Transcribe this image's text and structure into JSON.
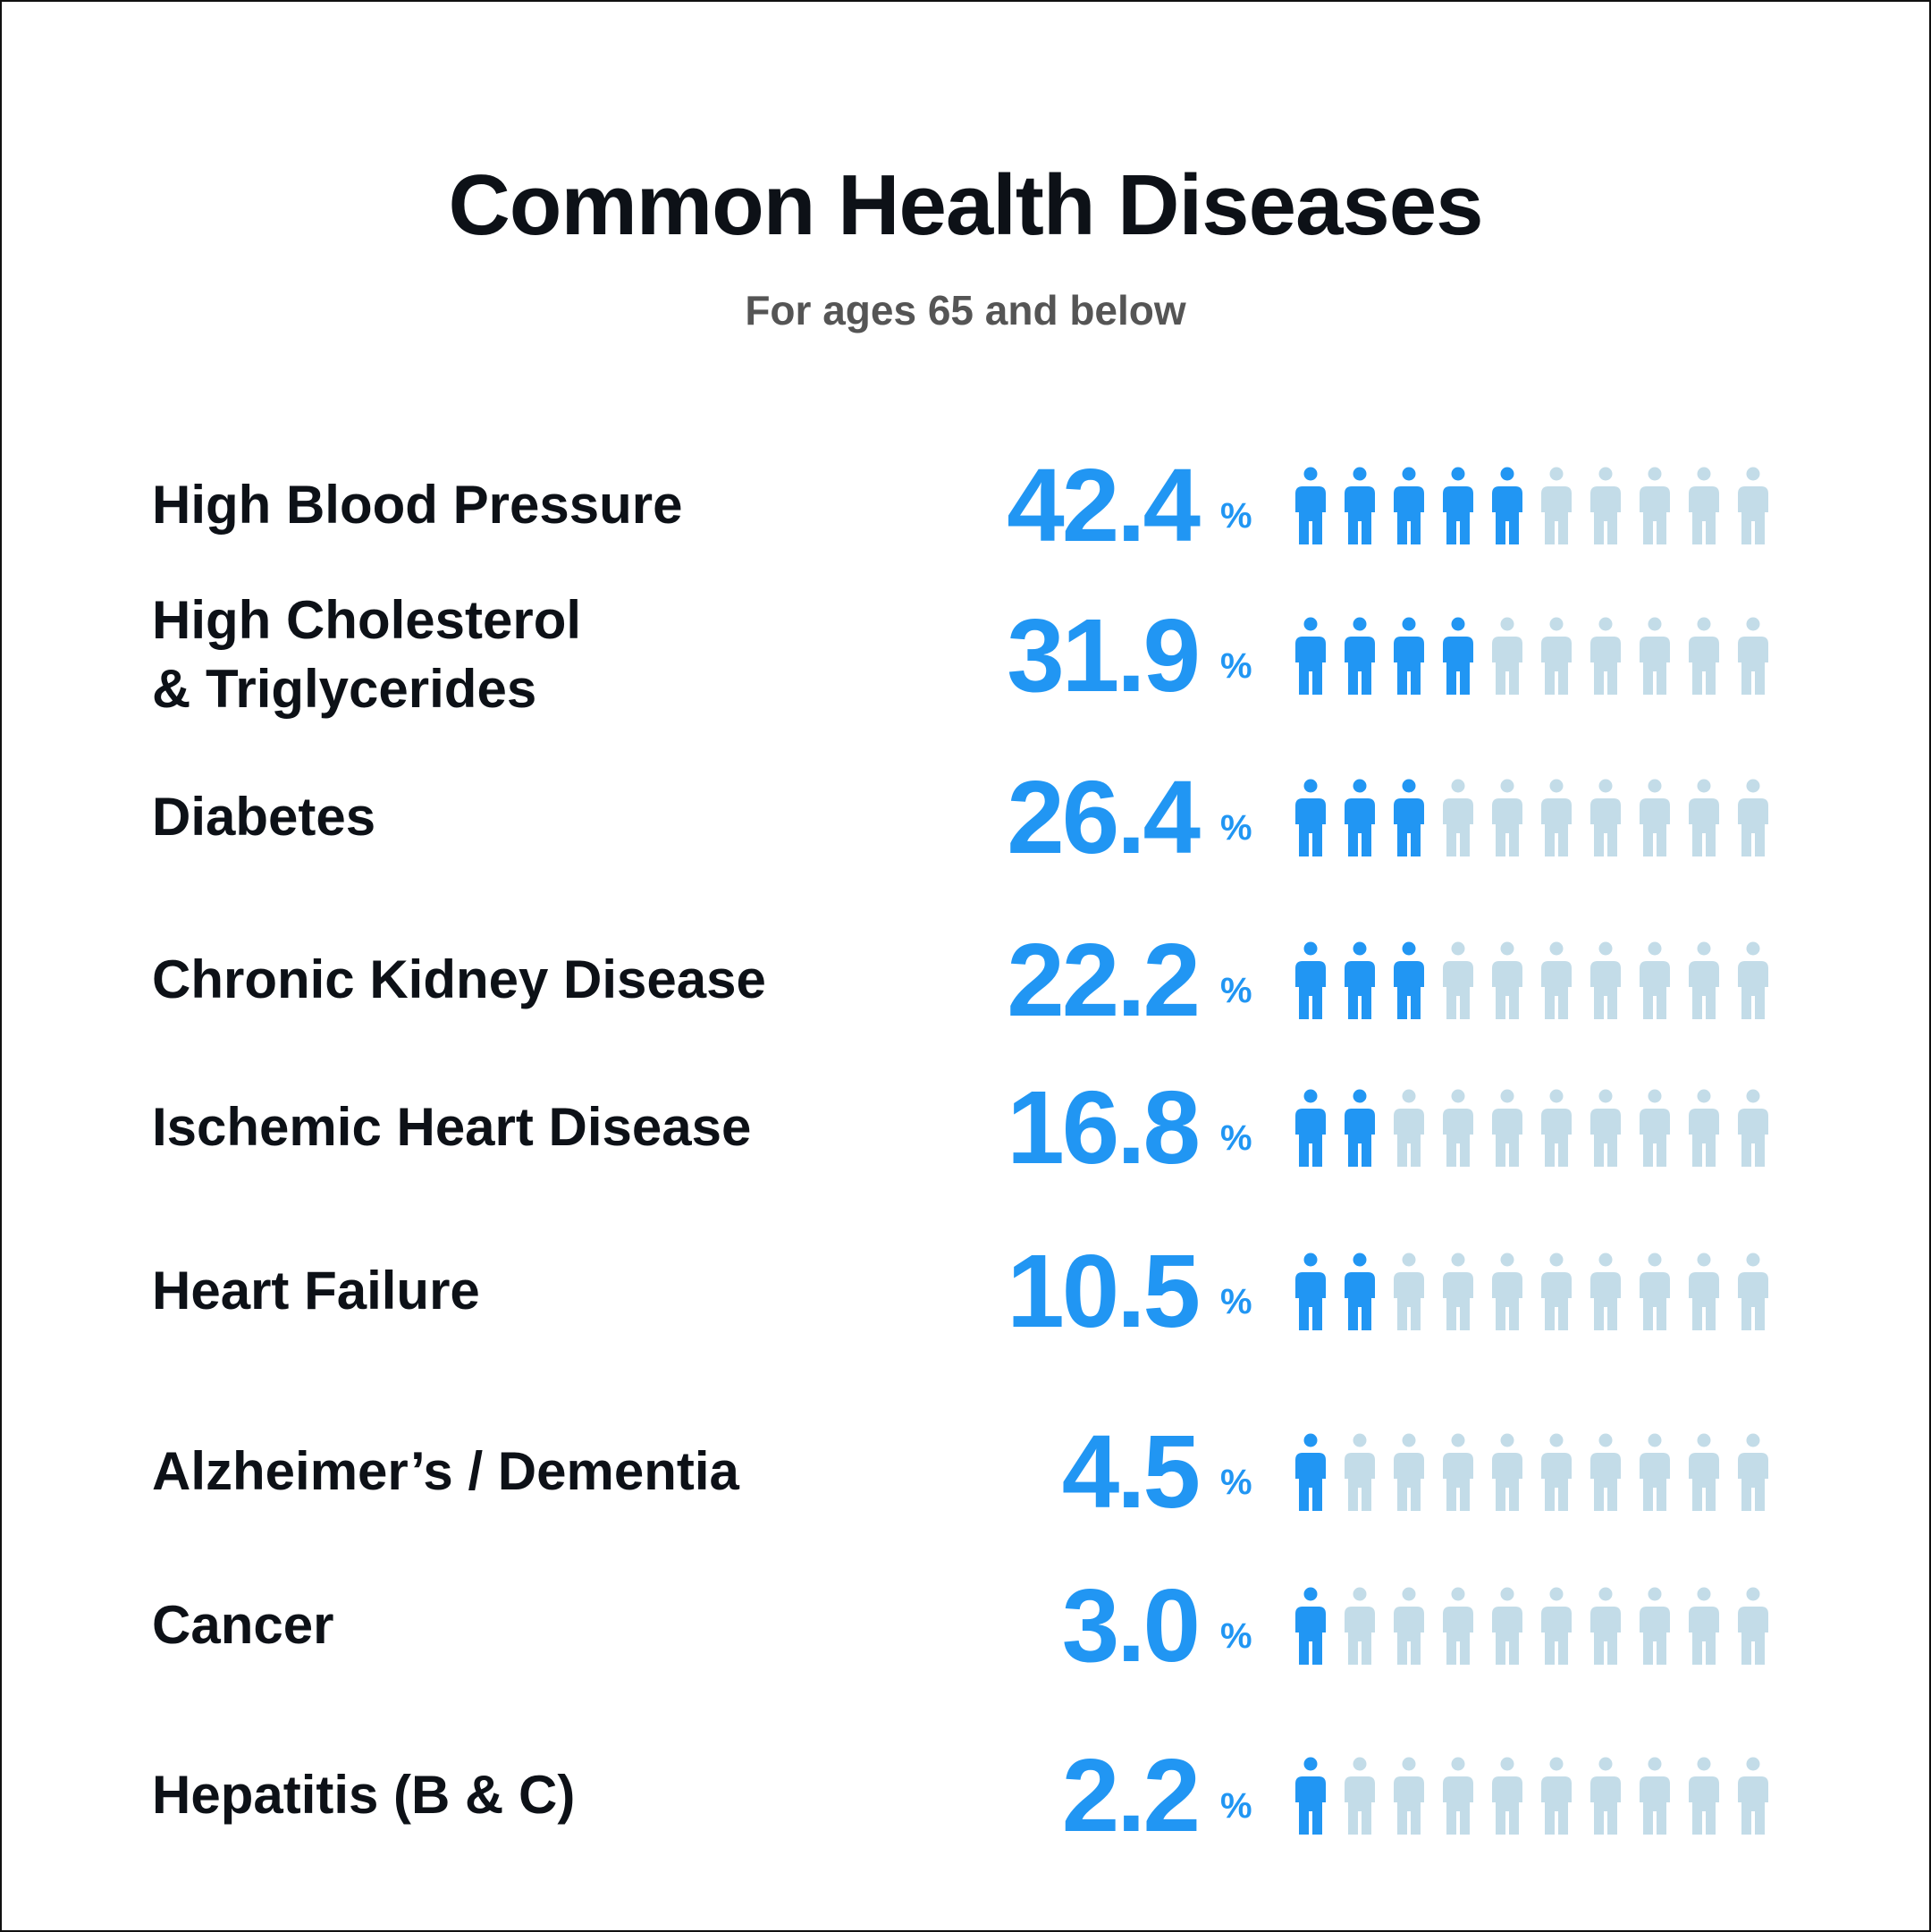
{
  "chart_data": {
    "type": "pictogram",
    "title": "Common Health Diseases",
    "subtitle": "For ages 65 and below",
    "unit": "%",
    "icons_per_row": 10,
    "rows": [
      {
        "label": "High Blood Pressure",
        "value": 42.4,
        "display": "42.4",
        "filled_icons": 5
      },
      {
        "label": "High Cholesterol\n& Triglycerides",
        "value": 31.9,
        "display": "31.9",
        "filled_icons": 4
      },
      {
        "label": "Diabetes",
        "value": 26.4,
        "display": "26.4",
        "filled_icons": 3
      },
      {
        "label": "Chronic Kidney Disease",
        "value": 22.2,
        "display": "22.2",
        "filled_icons": 3
      },
      {
        "label": "Ischemic Heart Disease",
        "value": 16.8,
        "display": "16.8",
        "filled_icons": 2
      },
      {
        "label": "Heart Failure",
        "value": 10.5,
        "display": "10.5",
        "filled_icons": 2
      },
      {
        "label": "Alzheimer’s / Dementia",
        "value": 4.5,
        "display": "4.5",
        "filled_icons": 1
      },
      {
        "label": "Cancer",
        "value": 3.0,
        "display": "3.0",
        "filled_icons": 1
      },
      {
        "label": "Hepatitis (B & C)",
        "value": 2.2,
        "display": "2.2",
        "filled_icons": 1
      }
    ]
  },
  "colors": {
    "accent": "#2196F3",
    "icon_filled": "#2196F3",
    "icon_empty": "#C3DCE8",
    "text": "#0D1117",
    "subtitle": "#555555"
  }
}
